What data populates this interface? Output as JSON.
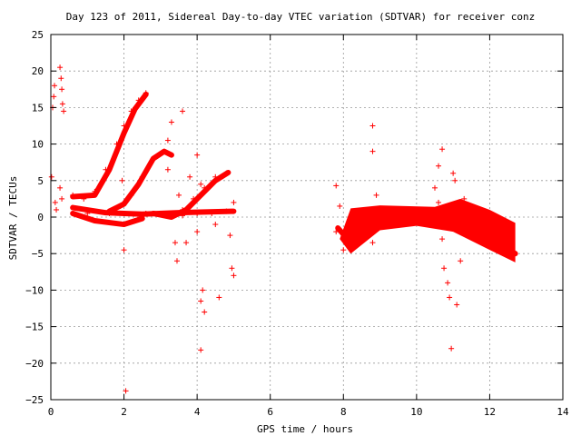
{
  "chart_data": {
    "type": "scatter",
    "title": "Day 123 of 2011, Sidereal Day-to-day VTEC variation (SDTVAR) for receiver conz",
    "xlabel": "GPS time / hours",
    "ylabel": "SDTVAR / TECUs",
    "xlim": [
      0,
      14
    ],
    "ylim": [
      -25,
      25
    ],
    "x_ticks": [
      "0",
      "2",
      "4",
      "6",
      "8",
      "10",
      "12",
      "14"
    ],
    "y_ticks": [
      "25",
      "20",
      "15",
      "10",
      "5",
      "0",
      "−5",
      "−10",
      "−15",
      "−20",
      "−25"
    ],
    "grid": true,
    "marker": "plus",
    "color": "#ff0000",
    "series": [
      {
        "values": [
          {
            "x": 0.02,
            "y": 5.5
          },
          {
            "x": 0.05,
            "y": 15.0
          },
          {
            "x": 0.08,
            "y": 16.5
          },
          {
            "x": 0.1,
            "y": 18.0
          },
          {
            "x": 0.12,
            "y": 2.0
          },
          {
            "x": 0.15,
            "y": 1.0
          },
          {
            "x": 0.25,
            "y": 20.5
          },
          {
            "x": 0.28,
            "y": 19.0
          },
          {
            "x": 0.3,
            "y": 17.5
          },
          {
            "x": 0.32,
            "y": 15.5
          },
          {
            "x": 0.35,
            "y": 14.5
          },
          {
            "x": 0.25,
            "y": 4.0
          },
          {
            "x": 0.3,
            "y": 2.5
          },
          {
            "x": 0.6,
            "y": 3.0
          },
          {
            "x": 0.9,
            "y": 2.5
          },
          {
            "x": 1.0,
            "y": 0.5
          },
          {
            "x": 1.2,
            "y": 3.5
          },
          {
            "x": 1.5,
            "y": 6.5
          },
          {
            "x": 1.8,
            "y": 10.0
          },
          {
            "x": 2.0,
            "y": 12.5
          },
          {
            "x": 2.2,
            "y": 14.5
          },
          {
            "x": 2.4,
            "y": 16.0
          },
          {
            "x": 2.6,
            "y": 17.0
          },
          {
            "x": 1.6,
            "y": 0.5
          },
          {
            "x": 1.9,
            "y": 1.5
          },
          {
            "x": 2.2,
            "y": 3.0
          },
          {
            "x": 2.5,
            "y": 5.5
          },
          {
            "x": 2.8,
            "y": 8.0
          },
          {
            "x": 3.1,
            "y": 9.0
          },
          {
            "x": 3.2,
            "y": 10.5
          },
          {
            "x": 2.3,
            "y": -0.5
          },
          {
            "x": 2.6,
            "y": 0.5
          },
          {
            "x": 3.0,
            "y": 0.5
          },
          {
            "x": 3.3,
            "y": 0.5
          },
          {
            "x": 3.6,
            "y": 1.0
          },
          {
            "x": 3.9,
            "y": 2.5
          },
          {
            "x": 4.2,
            "y": 4.0
          },
          {
            "x": 4.5,
            "y": 5.5
          },
          {
            "x": 4.8,
            "y": 6.0
          },
          {
            "x": 3.6,
            "y": 0.2
          },
          {
            "x": 4.0,
            "y": 0.5
          },
          {
            "x": 4.4,
            "y": 0.5
          },
          {
            "x": 4.8,
            "y": 0.8
          },
          {
            "x": 3.3,
            "y": 13.0
          },
          {
            "x": 3.6,
            "y": 14.5
          },
          {
            "x": 3.2,
            "y": 6.5
          },
          {
            "x": 3.5,
            "y": 3.0
          },
          {
            "x": 3.8,
            "y": 5.5
          },
          {
            "x": 4.0,
            "y": 8.5
          },
          {
            "x": 4.1,
            "y": 4.5
          },
          {
            "x": 3.4,
            "y": -3.5
          },
          {
            "x": 3.45,
            "y": -6.0
          },
          {
            "x": 3.7,
            "y": -3.5
          },
          {
            "x": 4.0,
            "y": -2.0
          },
          {
            "x": 4.1,
            "y": -11.5
          },
          {
            "x": 4.15,
            "y": -10.0
          },
          {
            "x": 4.2,
            "y": -13.0
          },
          {
            "x": 4.1,
            "y": -18.2
          },
          {
            "x": 4.6,
            "y": -11.0
          },
          {
            "x": 4.5,
            "y": -1.0
          },
          {
            "x": 4.9,
            "y": -2.5
          },
          {
            "x": 4.95,
            "y": -7.0
          },
          {
            "x": 5.0,
            "y": -8.0
          },
          {
            "x": 5.0,
            "y": 2.0
          },
          {
            "x": 2.0,
            "y": -4.5
          },
          {
            "x": 2.05,
            "y": -23.8
          },
          {
            "x": 1.95,
            "y": 5.0
          },
          {
            "x": 7.8,
            "y": 4.3
          },
          {
            "x": 7.8,
            "y": -2.0
          },
          {
            "x": 7.9,
            "y": 1.5
          },
          {
            "x": 8.0,
            "y": -4.5
          },
          {
            "x": 8.2,
            "y": -3.0
          },
          {
            "x": 8.5,
            "y": -1.0
          },
          {
            "x": 8.8,
            "y": 12.5
          },
          {
            "x": 8.8,
            "y": 9.0
          },
          {
            "x": 8.9,
            "y": 3.0
          },
          {
            "x": 8.8,
            "y": -3.5
          },
          {
            "x": 9.3,
            "y": 0.0
          },
          {
            "x": 10.0,
            "y": 0.0
          },
          {
            "x": 10.5,
            "y": 4.0
          },
          {
            "x": 10.6,
            "y": 7.0
          },
          {
            "x": 10.7,
            "y": 9.3
          },
          {
            "x": 10.6,
            "y": 2.0
          },
          {
            "x": 10.7,
            "y": -3.0
          },
          {
            "x": 10.75,
            "y": -7.0
          },
          {
            "x": 10.85,
            "y": -9.0
          },
          {
            "x": 10.9,
            "y": -11.0
          },
          {
            "x": 10.95,
            "y": -18.0
          },
          {
            "x": 11.0,
            "y": 6.0
          },
          {
            "x": 11.05,
            "y": 5.0
          },
          {
            "x": 11.1,
            "y": -12.0
          },
          {
            "x": 11.2,
            "y": -6.0
          },
          {
            "x": 11.3,
            "y": 2.5
          },
          {
            "x": 11.5,
            "y": -1.5
          },
          {
            "x": 11.8,
            "y": -3.5
          },
          {
            "x": 12.2,
            "y": -4.5
          },
          {
            "x": 12.6,
            "y": -5.5
          }
        ]
      }
    ]
  }
}
